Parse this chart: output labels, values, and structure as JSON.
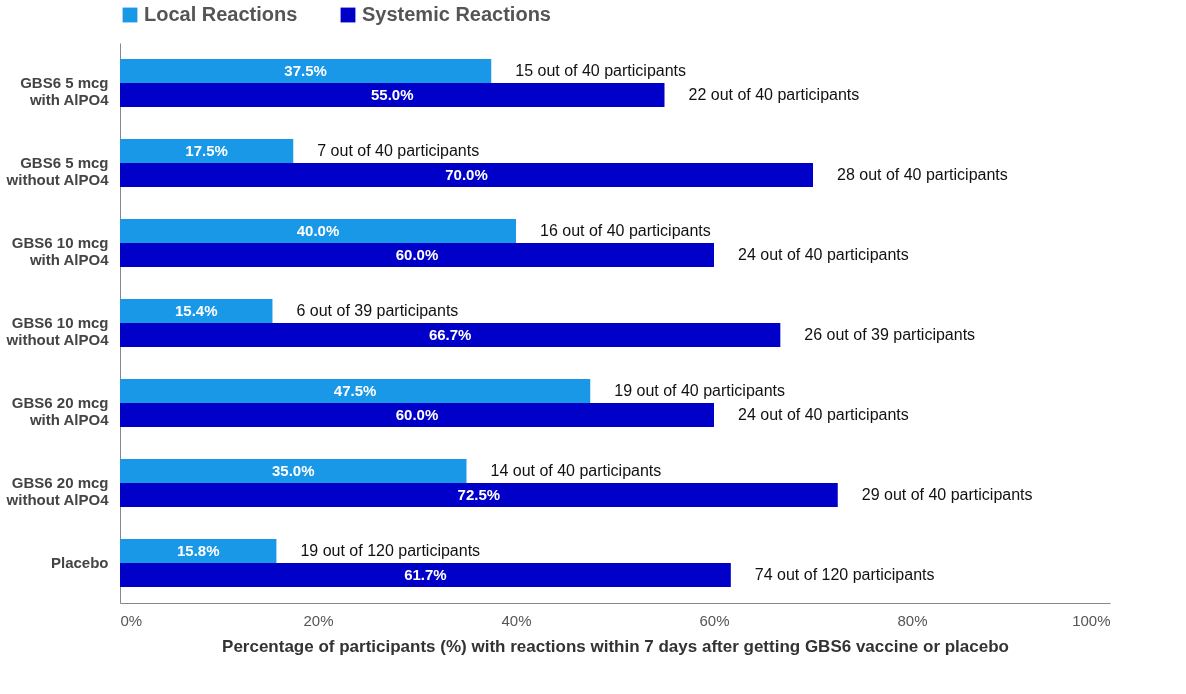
{
  "chart_data": {
    "type": "bar",
    "orientation": "horizontal",
    "xlabel": "Percentage of participants (%) with reactions within 7 days after getting GBS6 vaccine or placebo",
    "categories": [
      "GBS6 5 mcg\nwith AlPO4",
      "GBS6 5 mcg\nwithout AlPO4",
      "GBS6 10 mcg\nwith AlPO4",
      "GBS6 10 mcg\nwithout AlPO4",
      "GBS6 20 mcg\nwith AlPO4",
      "GBS6 20 mcg\nwithout AlPO4",
      "Placebo"
    ],
    "series": [
      {
        "name": "Local Reactions",
        "color": "#1a98e8",
        "values": [
          37.5,
          17.5,
          40.0,
          15.4,
          47.5,
          35.0,
          15.8
        ],
        "value_labels": [
          "37.5%",
          "17.5%",
          "40.0%",
          "15.4%",
          "47.5%",
          "35.0%",
          "15.8%"
        ]
      },
      {
        "name": "Systemic Reactions",
        "color": "#0000c8",
        "values": [
          55.0,
          70.0,
          60.0,
          66.7,
          60.0,
          72.5,
          61.7
        ],
        "value_labels": [
          "55.0%",
          "70.0%",
          "60.0%",
          "66.7%",
          "60.0%",
          "72.5%",
          "61.7%"
        ]
      }
    ],
    "annotations": [
      "15 out of 40 participants",
      "22 out of 40 participants",
      "7 out of 40 participants",
      "28 out of 40 participants",
      "16 out of 40 participants",
      "24 out of 40 participants",
      "6 out of 39 participants",
      "26 out of 39 participants",
      "19 out of 40 participants",
      "24 out of 40 participants",
      "14 out of 40 participants",
      "29 out of 40 participants",
      "19 out of 120 participants",
      "74 out of 120 participants"
    ],
    "xlim": [
      0,
      100
    ],
    "xticks": [
      {
        "value": 0,
        "label": "0%"
      },
      {
        "value": 20,
        "label": "20%"
      },
      {
        "value": 40,
        "label": "40%"
      },
      {
        "value": 60,
        "label": "60%"
      },
      {
        "value": 80,
        "label": "80%"
      },
      {
        "value": 100,
        "label": "100%"
      }
    ],
    "grid": false,
    "legend": "top"
  }
}
